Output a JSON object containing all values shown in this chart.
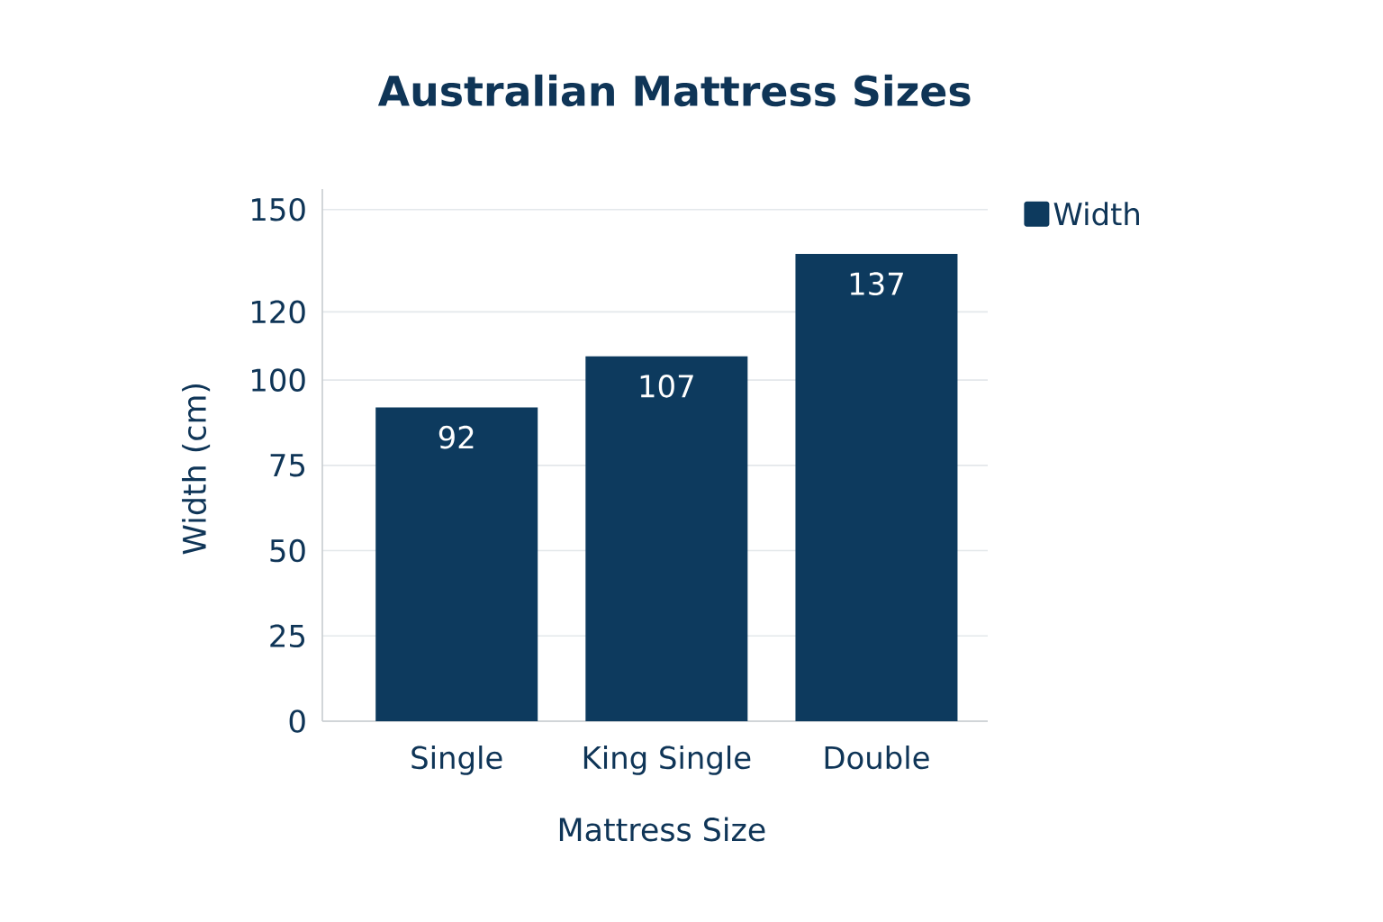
{
  "chart_data": {
    "type": "bar",
    "title": "Australian Mattress Sizes",
    "xlabel": "Mattress Size",
    "ylabel": "Width (cm)",
    "categories": [
      "Single",
      "King Single",
      "Double"
    ],
    "series": [
      {
        "name": "Width",
        "color": "#0d3a5e",
        "values": [
          92,
          107,
          137
        ]
      }
    ],
    "ylim": [
      0,
      156
    ],
    "yticks": [
      0,
      25,
      50,
      75,
      100,
      120,
      150
    ],
    "grid": "y",
    "legend": "top right",
    "data_labels": true
  }
}
